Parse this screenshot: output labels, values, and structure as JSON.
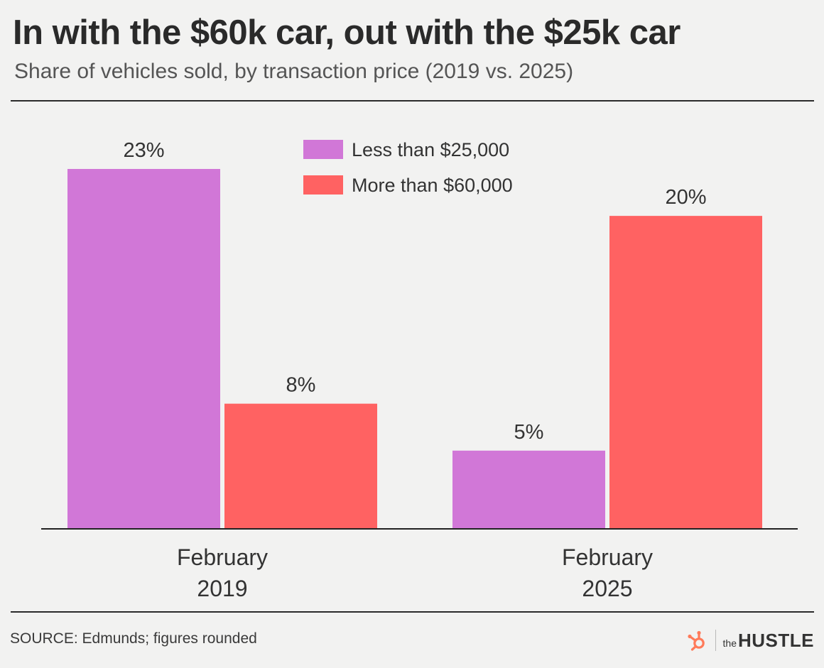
{
  "title": "In with the $60k car, out with the $25k car",
  "subtitle": "Share of vehicles sold, by transaction price (2019 vs. 2025)",
  "footer": {
    "source": "SOURCE: Edmunds; figures rounded",
    "brand_the": "the",
    "brand_name": "HUSTLE"
  },
  "colors": {
    "purple": "#d177d7",
    "coral": "#ff6262",
    "brand_orange": "#ff7a59"
  },
  "chart_data": {
    "type": "bar",
    "title": "In with the $60k car, out with the $25k car",
    "subtitle": "Share of vehicles sold, by transaction price (2019 vs. 2025)",
    "categories": [
      [
        "February",
        "2019"
      ],
      [
        "February",
        "2025"
      ]
    ],
    "series": [
      {
        "name": "Less than $25,000",
        "values": [
          23,
          5
        ],
        "labels": [
          "23%",
          "5%"
        ],
        "color": "#d177d7"
      },
      {
        "name": "More than $60,000",
        "values": [
          8,
          20
        ],
        "labels": [
          "8%",
          "20%"
        ],
        "color": "#ff6262"
      }
    ],
    "xlabel": "",
    "ylabel": "",
    "ylim": [
      0,
      23
    ],
    "grid": false,
    "legend": "top-center"
  }
}
